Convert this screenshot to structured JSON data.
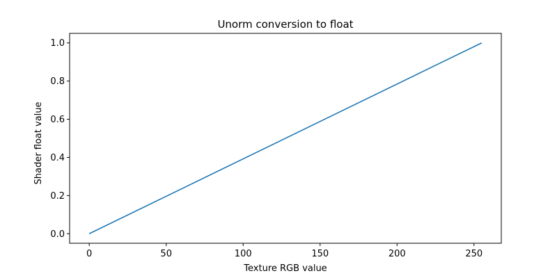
{
  "chart_data": {
    "type": "line",
    "title": "Unorm conversion to float",
    "xlabel": "Texture RGB value",
    "ylabel": "Shader float value",
    "xlim": [
      -12.75,
      267.75
    ],
    "ylim": [
      -0.05,
      1.05
    ],
    "xticks": [
      0,
      50,
      100,
      150,
      200,
      250
    ],
    "yticks": [
      0.0,
      0.2,
      0.4,
      0.6,
      0.8,
      1.0
    ],
    "xtick_labels": [
      "0",
      "50",
      "100",
      "150",
      "200",
      "250"
    ],
    "ytick_labels": [
      "0.0",
      "0.2",
      "0.4",
      "0.6",
      "0.8",
      "1.0"
    ],
    "grid": false,
    "series": [
      {
        "x": [
          0,
          255
        ],
        "y": [
          0.0,
          1.0
        ],
        "color": "#1f77b4"
      }
    ]
  }
}
